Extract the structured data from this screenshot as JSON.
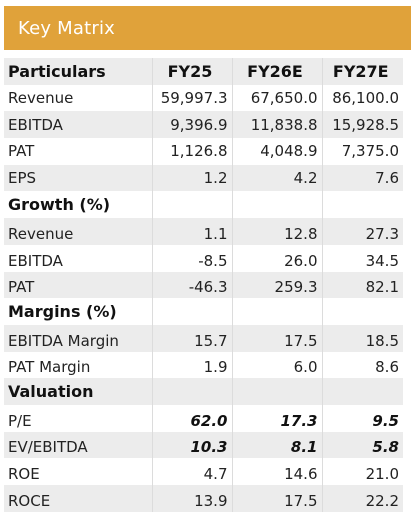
{
  "title": "Key Matrix",
  "columns": [
    "Particulars",
    "FY25",
    "FY26E",
    "FY27E"
  ],
  "rows": [
    {
      "label": "Revenue",
      "values": [
        "59,997.3",
        "67,650.0",
        "86,100.0"
      ]
    },
    {
      "label": "EBITDA",
      "values": [
        "9,396.9",
        "11,838.8",
        "15,928.5"
      ]
    },
    {
      "label": "PAT",
      "values": [
        "1,126.8",
        "4,048.9",
        "7,375.0"
      ]
    },
    {
      "label": "EPS",
      "values": [
        "1.2",
        "4.2",
        "7.6"
      ]
    },
    {
      "label": "Growth (%)",
      "section": true
    },
    {
      "label": "Revenue",
      "values": [
        "1.1",
        "12.8",
        "27.3"
      ]
    },
    {
      "label": "EBITDA",
      "values": [
        "-8.5",
        "26.0",
        "34.5"
      ]
    },
    {
      "label": "PAT",
      "values": [
        "-46.3",
        "259.3",
        "82.1"
      ]
    },
    {
      "label": "Margins (%)",
      "section": true
    },
    {
      "label": "EBITDA Margin",
      "values": [
        "15.7",
        "17.5",
        "18.5"
      ]
    },
    {
      "label": "PAT Margin",
      "values": [
        "1.9",
        "6.0",
        "8.6"
      ]
    },
    {
      "label": "Valuation",
      "section": true
    },
    {
      "label": "P/E",
      "values": [
        "62.0",
        "17.3",
        "9.5"
      ],
      "emphasis": true
    },
    {
      "label": "EV/EBITDA",
      "values": [
        "10.3",
        "8.1",
        "5.8"
      ],
      "emphasis": true
    },
    {
      "label": "ROE",
      "values": [
        "4.7",
        "14.6",
        "21.0"
      ]
    },
    {
      "label": "ROCE",
      "values": [
        "13.9",
        "17.5",
        "22.2"
      ]
    }
  ],
  "colors": {
    "banner": "#e0a23a",
    "band": "#ececec"
  }
}
